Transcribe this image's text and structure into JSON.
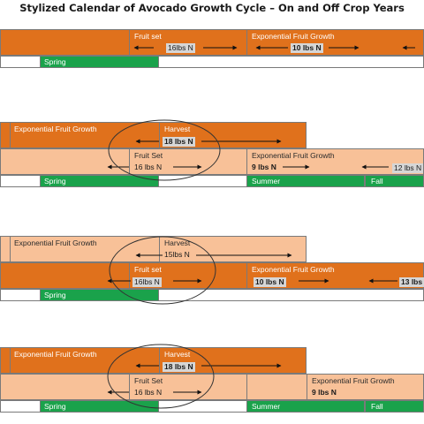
{
  "title": "Stylized Calendar of Avocado Growth Cycle – On and Off Crop Years",
  "row1": {
    "fruit_set": "Fruit set",
    "fruit_set_n": "16lbs N",
    "efg": "Exponential Fruit Growth",
    "efg_n": "10 lbs N",
    "spring": "Spring"
  },
  "row2": {
    "efg_top": "Exponential Fruit Growth",
    "harvest": "Harvest",
    "harvest_n": "18 lbs N",
    "fruit_set": "Fruit Set",
    "fruit_set_n": "16 lbs N",
    "efg": "Exponential Fruit Growth",
    "efg_n1": "9 lbs N",
    "efg_n2": "12 lbs N",
    "spring": "Spring",
    "summer": "Summer",
    "fall": "Fall"
  },
  "row3": {
    "efg_top": "Exponential Fruit Growth",
    "harvest": "Harvest",
    "harvest_n": "15lbs N",
    "fruit_set": "Fruit set",
    "fruit_set_n": "16lbs N",
    "efg": "Exponential Fruit Growth",
    "efg_n1": "10 lbs N",
    "efg_n2": "13 lbs",
    "spring": "Spring"
  },
  "row4": {
    "efg_top": "Exponential Fruit Growth",
    "harvest": "Harvest",
    "harvest_n": "18 lbs N",
    "fruit_set": "Fruit Set",
    "fruit_set_n": "16 lbs N",
    "efg": "Exponential Fruit Growth",
    "efg_n1": "9 lbs N",
    "spring": "Spring",
    "summer": "Summer",
    "fall": "Fall"
  },
  "colors": {
    "dark_orange": "#e0711c",
    "light_orange": "#f8c198",
    "season_green": "#1aa24b"
  }
}
